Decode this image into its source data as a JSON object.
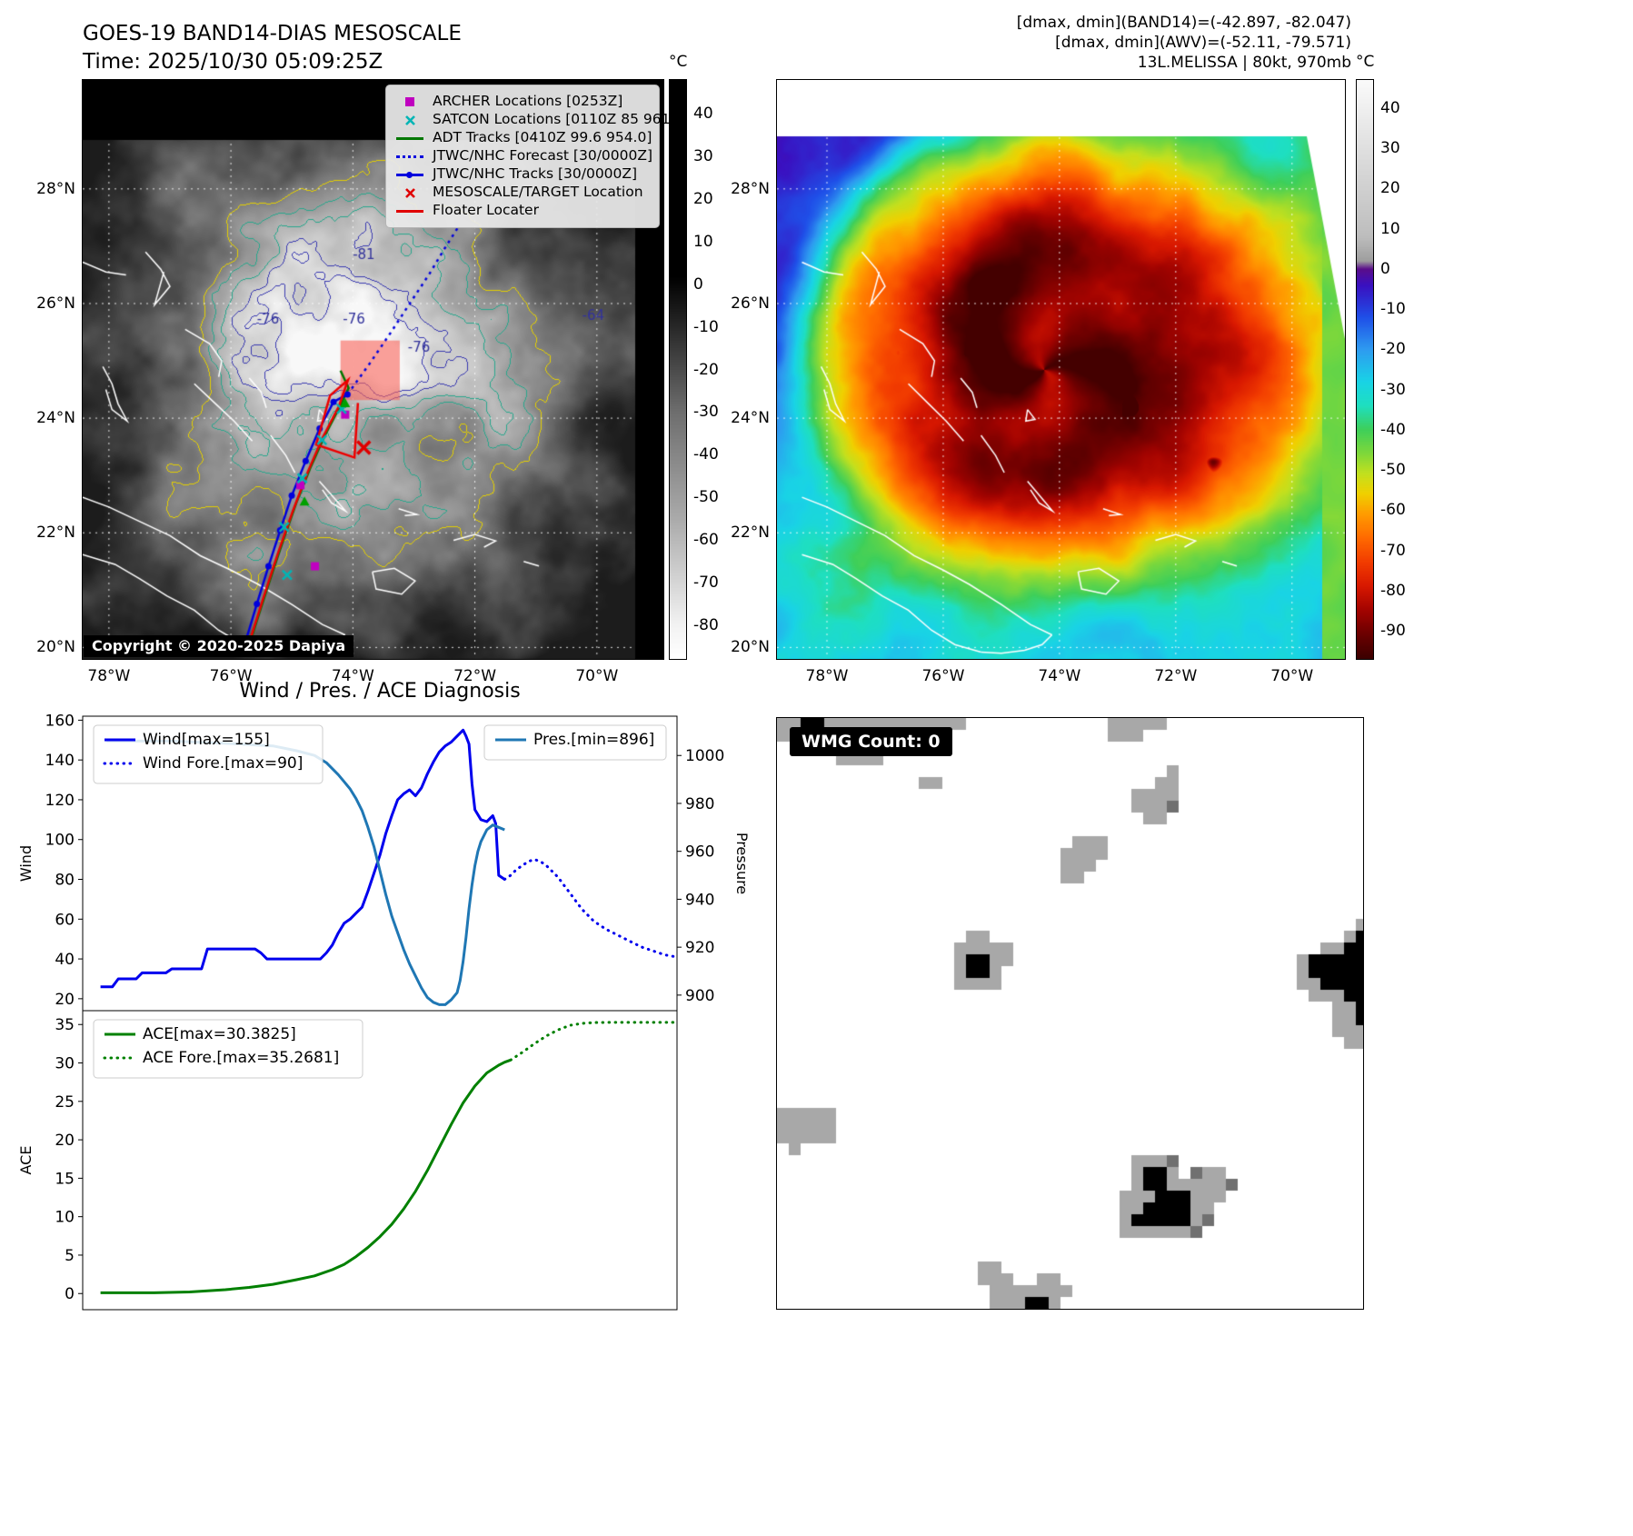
{
  "band14": {
    "title": "GOES-19 BAND14-DIAS MESOSCALE",
    "subtitle": "Time: 2025/10/30 05:09:25Z",
    "copyright": "Copyright © 2020-2025 Dapiya",
    "legend": [
      {
        "label": "ARCHER Locations [0253Z]",
        "marker": "square",
        "color": "#bf00bf"
      },
      {
        "label": "SATCON Locations [0110Z 85 961]",
        "marker": "x",
        "color": "#00b5b5"
      },
      {
        "label": "ADT Tracks [0410Z 99.6 954.0]",
        "marker": "line",
        "color": "#007700"
      },
      {
        "label": "JTWC/NHC Forecast [30/0000Z]",
        "marker": "dotted-line",
        "color": "#0000dd"
      },
      {
        "label": "JTWC/NHC Tracks [30/0000Z]",
        "marker": "line-dot",
        "color": "#0000dd"
      },
      {
        "label": "MESOSCALE/TARGET Location",
        "marker": "x",
        "color": "#e00000"
      },
      {
        "label": "Floater Locater",
        "marker": "line",
        "color": "#e00000"
      }
    ],
    "x_ticks": [
      {
        "value": 78,
        "label": "78°W"
      },
      {
        "value": 76,
        "label": "76°W"
      },
      {
        "value": 74,
        "label": "74°W"
      },
      {
        "value": 72,
        "label": "72°W"
      },
      {
        "value": 70,
        "label": "70°W"
      }
    ],
    "y_ticks": [
      {
        "value": 28,
        "label": "28°N"
      },
      {
        "value": 26,
        "label": "26°N"
      },
      {
        "value": 24,
        "label": "24°N"
      },
      {
        "value": 22,
        "label": "22°N"
      },
      {
        "value": 20,
        "label": "20°N"
      }
    ],
    "colorbar": {
      "unit": "°C",
      "vmin": -88,
      "vmax": 48,
      "ticks": [
        40,
        30,
        20,
        10,
        0,
        -10,
        -20,
        -30,
        -40,
        -50,
        -60,
        -70,
        -80
      ],
      "stops": [
        [
          48,
          "#000000"
        ],
        [
          2,
          "#000000"
        ],
        [
          -6,
          "#1a1a1a"
        ],
        [
          -30,
          "#6e6e6e"
        ],
        [
          -55,
          "#aaaaaa"
        ],
        [
          -80,
          "#f2f2f2"
        ],
        [
          -88,
          "#ffffff"
        ]
      ]
    },
    "contour_labels": [
      {
        "text": "-81",
        "fx": 0.465,
        "fy": 0.31
      },
      {
        "text": "-76",
        "fx": 0.3,
        "fy": 0.42
      },
      {
        "text": "-76",
        "fx": 0.448,
        "fy": 0.42
      },
      {
        "text": "-64",
        "fx": 0.86,
        "fy": 0.415
      },
      {
        "text": "-76",
        "fx": 0.56,
        "fy": 0.47
      }
    ],
    "overlays": {
      "target_box": {
        "fx": 0.444,
        "fy": 0.45,
        "fw": 0.102,
        "fh": 0.103
      },
      "target_x": {
        "fx": 0.484,
        "fy": 0.635
      },
      "jtwc_track": [
        [
          0.282,
          0.965
        ],
        [
          0.3,
          0.905
        ],
        [
          0.32,
          0.84
        ],
        [
          0.34,
          0.778
        ],
        [
          0.36,
          0.718
        ],
        [
          0.384,
          0.658
        ],
        [
          0.408,
          0.602
        ],
        [
          0.432,
          0.556
        ],
        [
          0.456,
          0.543
        ]
      ],
      "jtwc_forecast": [
        [
          0.456,
          0.543
        ],
        [
          0.494,
          0.49
        ],
        [
          0.53,
          0.437
        ],
        [
          0.562,
          0.388
        ],
        [
          0.597,
          0.335
        ],
        [
          0.624,
          0.29
        ],
        [
          0.648,
          0.252
        ]
      ],
      "adt_track": [
        [
          0.287,
          0.975
        ],
        [
          0.307,
          0.912
        ],
        [
          0.327,
          0.85
        ],
        [
          0.347,
          0.79
        ],
        [
          0.368,
          0.73
        ],
        [
          0.392,
          0.67
        ],
        [
          0.417,
          0.614
        ],
        [
          0.442,
          0.566
        ],
        [
          0.458,
          0.532
        ],
        [
          0.444,
          0.502
        ]
      ],
      "floater_track": [
        [
          0.285,
          0.978
        ],
        [
          0.31,
          0.898
        ],
        [
          0.336,
          0.818
        ],
        [
          0.362,
          0.744
        ],
        [
          0.388,
          0.676
        ],
        [
          0.413,
          0.618
        ],
        [
          0.441,
          0.564
        ],
        [
          0.457,
          0.518
        ],
        [
          0.426,
          0.545
        ],
        [
          0.402,
          0.63
        ],
        [
          0.468,
          0.652
        ],
        [
          0.474,
          0.558
        ]
      ],
      "archer_points": [
        [
          0.375,
          0.7
        ],
        [
          0.4,
          0.84
        ],
        [
          0.452,
          0.578
        ]
      ],
      "satcon_points": [
        [
          0.347,
          0.772
        ],
        [
          0.378,
          0.688
        ],
        [
          0.412,
          0.622
        ],
        [
          0.446,
          0.568
        ],
        [
          0.352,
          0.855
        ]
      ],
      "adt_points": [
        [
          0.452,
          0.558
        ],
        [
          0.382,
          0.728
        ]
      ]
    }
  },
  "awv": {
    "header_lines": [
      "[dmax, dmin](BAND14)=(-42.897, -82.047)",
      "[dmax, dmin](AWV)=(-52.11, -79.571)",
      "13L.MELISSA | 80kt, 970mb"
    ],
    "x_ticks": [
      {
        "value": 78,
        "label": "78°W"
      },
      {
        "value": 76,
        "label": "76°W"
      },
      {
        "value": 74,
        "label": "74°W"
      },
      {
        "value": 72,
        "label": "72°W"
      },
      {
        "value": 70,
        "label": "70°W"
      }
    ],
    "y_ticks": [
      {
        "value": 28,
        "label": "28°N"
      },
      {
        "value": 26,
        "label": "26°N"
      },
      {
        "value": 24,
        "label": "24°N"
      },
      {
        "value": 22,
        "label": "22°N"
      },
      {
        "value": 20,
        "label": "20°N"
      }
    ],
    "colorbar": {
      "unit": "°C",
      "vmin": -97,
      "vmax": 47,
      "ticks": [
        40,
        30,
        20,
        10,
        0,
        -10,
        -20,
        -30,
        -40,
        -50,
        -60,
        -70,
        -80,
        -90
      ],
      "stops": [
        [
          47,
          "#fafafa"
        ],
        [
          8,
          "#bdbdbd"
        ],
        [
          2,
          "#9e9e9e"
        ],
        [
          0,
          "#5a0d8a"
        ],
        [
          -4,
          "#3a10c0"
        ],
        [
          -12,
          "#1f4fe8"
        ],
        [
          -20,
          "#2e9bf0"
        ],
        [
          -28,
          "#19d3e6"
        ],
        [
          -34,
          "#1edfc0"
        ],
        [
          -40,
          "#3ecf5a"
        ],
        [
          -46,
          "#7fd83a"
        ],
        [
          -51,
          "#c3e01e"
        ],
        [
          -56,
          "#f0d000"
        ],
        [
          -61,
          "#ff9c00"
        ],
        [
          -67,
          "#ff6a00"
        ],
        [
          -73,
          "#f23c00"
        ],
        [
          -79,
          "#d81800"
        ],
        [
          -85,
          "#a30300"
        ],
        [
          -91,
          "#6b0000"
        ],
        [
          -97,
          "#3c0000"
        ]
      ]
    }
  },
  "wmg": {
    "label": "WMG Count: 0"
  },
  "chart_data": [
    {
      "id": "wind-pressure",
      "type": "line",
      "title": "Wind / Pres. / ACE Diagnosis",
      "x_range": [
        0,
        100
      ],
      "grid": false,
      "left_axis": {
        "label": "Wind",
        "min": 14,
        "max": 162,
        "ticks": [
          20,
          40,
          60,
          80,
          100,
          120,
          140,
          160
        ]
      },
      "right_axis": {
        "label": "Pressure",
        "min": 893.5,
        "max": 1016.4,
        "ticks": [
          900,
          920,
          940,
          960,
          980,
          1000
        ]
      },
      "series": [
        {
          "name": "Wind[max=155]",
          "axis": "left",
          "style": "solid",
          "color": "#0000ee",
          "points": [
            [
              3,
              26
            ],
            [
              5,
              26
            ],
            [
              6,
              30
            ],
            [
              9,
              30
            ],
            [
              10,
              33
            ],
            [
              14,
              33
            ],
            [
              15,
              35
            ],
            [
              20,
              35
            ],
            [
              21,
              45
            ],
            [
              29,
              45
            ],
            [
              30,
              43
            ],
            [
              31,
              40
            ],
            [
              40,
              40
            ],
            [
              41,
              43
            ],
            [
              42,
              47
            ],
            [
              43,
              53
            ],
            [
              44,
              58
            ],
            [
              45,
              60
            ],
            [
              46,
              63
            ],
            [
              47,
              66
            ],
            [
              48,
              74
            ],
            [
              49,
              83
            ],
            [
              50,
              92
            ],
            [
              51,
              103
            ],
            [
              52,
              112
            ],
            [
              53,
              120
            ],
            [
              54,
              123
            ],
            [
              55,
              125
            ],
            [
              56,
              122
            ],
            [
              57,
              126
            ],
            [
              58,
              133
            ],
            [
              59,
              139
            ],
            [
              60,
              144
            ],
            [
              61,
              147
            ],
            [
              62,
              149
            ],
            [
              63,
              152
            ],
            [
              64,
              155
            ],
            [
              64.5,
              152
            ],
            [
              65,
              148
            ],
            [
              65.5,
              128
            ],
            [
              66,
              115
            ],
            [
              67,
              110
            ],
            [
              68,
              109
            ],
            [
              69,
              112
            ],
            [
              69.5,
              108
            ],
            [
              70,
              82
            ],
            [
              71,
              80
            ]
          ]
        },
        {
          "name": "Wind Fore.[max=90]",
          "axis": "left",
          "style": "dotted",
          "color": "#0000ee",
          "points": [
            [
              71,
              80
            ],
            [
              72,
              82
            ],
            [
              73,
              85
            ],
            [
              74,
              87
            ],
            [
              75,
              89
            ],
            [
              76,
              90
            ],
            [
              77,
              89
            ],
            [
              78,
              87
            ],
            [
              79,
              84
            ],
            [
              80,
              81
            ],
            [
              81,
              77
            ],
            [
              82,
              73
            ],
            [
              83,
              69
            ],
            [
              84,
              65
            ],
            [
              85,
              62
            ],
            [
              86,
              59
            ],
            [
              88,
              55
            ],
            [
              90,
              52
            ],
            [
              92,
              49
            ],
            [
              94,
              46
            ],
            [
              96,
              44
            ],
            [
              98,
              42
            ],
            [
              100,
              41
            ]
          ]
        },
        {
          "name": "Pres.[min=896]",
          "axis": "right",
          "style": "solid",
          "color": "#1f77b4",
          "points": [
            [
              4,
              1006
            ],
            [
              15,
              1006
            ],
            [
              25,
              1005
            ],
            [
              32,
              1004
            ],
            [
              36,
              1002
            ],
            [
              39,
              1000
            ],
            [
              41,
              997
            ],
            [
              43,
              992
            ],
            [
              44,
              989
            ],
            [
              45,
              986
            ],
            [
              46,
              982
            ],
            [
              47,
              977
            ],
            [
              48,
              970
            ],
            [
              49,
              962
            ],
            [
              50,
              952
            ],
            [
              51,
              942
            ],
            [
              52,
              933
            ],
            [
              53,
              926
            ],
            [
              54,
              919
            ],
            [
              55,
              913
            ],
            [
              56,
              908
            ],
            [
              57,
              903
            ],
            [
              58,
              899
            ],
            [
              59,
              897
            ],
            [
              60,
              896
            ],
            [
              61,
              896
            ],
            [
              62,
              898
            ],
            [
              63,
              901
            ],
            [
              63.5,
              906
            ],
            [
              64,
              914
            ],
            [
              64.5,
              924
            ],
            [
              65,
              936
            ],
            [
              65.5,
              946
            ],
            [
              66,
              954
            ],
            [
              66.5,
              960
            ],
            [
              67,
              964
            ],
            [
              68,
              969
            ],
            [
              69,
              971
            ],
            [
              70,
              970
            ],
            [
              71,
              969
            ]
          ]
        }
      ]
    },
    {
      "id": "ace",
      "type": "line",
      "title": "",
      "x_range": [
        0,
        100
      ],
      "grid": false,
      "left_axis": {
        "label": "ACE",
        "min": -2.1,
        "max": 36.8,
        "ticks": [
          0,
          5,
          10,
          15,
          20,
          25,
          30,
          35
        ]
      },
      "series": [
        {
          "name": "ACE[max=30.3825]",
          "axis": "left",
          "style": "solid",
          "color": "#008000",
          "points": [
            [
              3,
              0.1
            ],
            [
              12,
              0.1
            ],
            [
              18,
              0.2
            ],
            [
              24,
              0.5
            ],
            [
              28,
              0.8
            ],
            [
              32,
              1.2
            ],
            [
              36,
              1.8
            ],
            [
              39,
              2.3
            ],
            [
              42,
              3.1
            ],
            [
              44,
              3.8
            ],
            [
              46,
              4.8
            ],
            [
              48,
              6
            ],
            [
              50,
              7.4
            ],
            [
              52,
              9
            ],
            [
              54,
              11
            ],
            [
              56,
              13.3
            ],
            [
              58,
              16
            ],
            [
              60,
              19
            ],
            [
              62,
              22
            ],
            [
              64,
              24.8
            ],
            [
              66,
              27
            ],
            [
              68,
              28.7
            ],
            [
              70,
              29.7
            ],
            [
              71,
              30.1
            ],
            [
              72,
              30.38
            ]
          ]
        },
        {
          "name": "ACE Fore.[max=35.2681]",
          "axis": "left",
          "style": "dotted",
          "color": "#008000",
          "points": [
            [
              72,
              30.38
            ],
            [
              74,
              31.4
            ],
            [
              76,
              32.5
            ],
            [
              78,
              33.5
            ],
            [
              80,
              34.3
            ],
            [
              82,
              34.9
            ],
            [
              84,
              35.15
            ],
            [
              86,
              35.25
            ],
            [
              88,
              35.27
            ],
            [
              92,
              35.27
            ],
            [
              96,
              35.27
            ],
            [
              100,
              35.27
            ]
          ]
        }
      ]
    }
  ]
}
